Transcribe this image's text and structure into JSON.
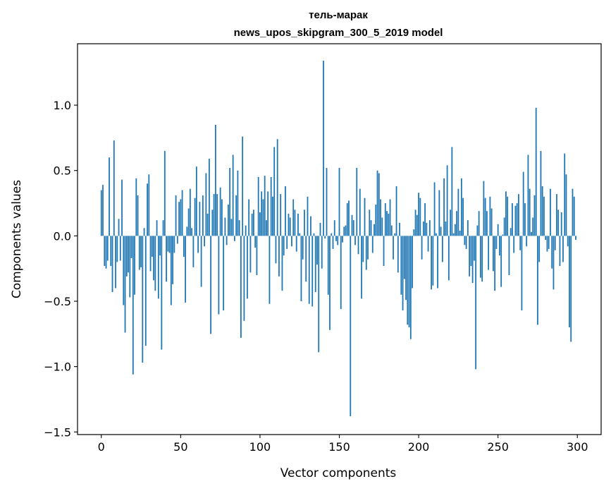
{
  "chart_data": {
    "type": "bar",
    "title_line1": "тель-марак",
    "title_line2": "news_upos_skipgram_300_5_2019 model",
    "xlabel": "Vector components",
    "ylabel": "Components values",
    "xlim": [
      -15,
      315
    ],
    "ylim": [
      -1.52,
      1.47
    ],
    "xticks": [
      0,
      50,
      100,
      150,
      200,
      250,
      300
    ],
    "xtick_labels": [
      "0",
      "50",
      "100",
      "150",
      "200",
      "250",
      "300"
    ],
    "yticks": [
      -1.5,
      -1.0,
      -0.5,
      0.0,
      0.5,
      1.0
    ],
    "ytick_labels": [
      "−1.5",
      "−1.0",
      "−0.5",
      "0.0",
      "0.5",
      "1.0"
    ],
    "bar_color": "#1f77b4",
    "grid": false,
    "x": "0..299 (component index)",
    "values": [
      0.35,
      0.39,
      -0.23,
      -0.25,
      -0.19,
      0.6,
      -0.23,
      -0.43,
      0.73,
      -0.4,
      -0.2,
      0.13,
      -0.19,
      0.43,
      -0.53,
      -0.74,
      -0.31,
      -0.28,
      -0.47,
      -0.17,
      -1.06,
      -0.45,
      0.44,
      0.31,
      -0.26,
      -0.24,
      -0.97,
      0.06,
      -0.84,
      0.4,
      0.47,
      -0.27,
      -0.16,
      -0.34,
      -0.42,
      0.12,
      -0.48,
      -0.15,
      -0.87,
      0.12,
      0.65,
      -0.35,
      -0.12,
      -0.13,
      -0.53,
      -0.37,
      -0.13,
      0.31,
      -0.06,
      0.26,
      0.28,
      0.35,
      -0.16,
      -0.51,
      0.07,
      0.21,
      0.36,
      0.06,
      -0.24,
      0.29,
      0.53,
      -0.13,
      0.26,
      -0.39,
      0.31,
      -0.08,
      0.48,
      0.17,
      0.59,
      -0.75,
      0.2,
      0.32,
      0.85,
      0.32,
      -0.6,
      0.37,
      0.28,
      -0.57,
      0.14,
      -0.07,
      0.24,
      0.52,
      0.13,
      0.62,
      -0.04,
      0.31,
      0.5,
      0.12,
      -0.78,
      0.76,
      -0.65,
      0.08,
      -0.48,
      0.28,
      -0.28,
      0.17,
      0.2,
      -0.09,
      -0.3,
      0.45,
      0.18,
      0.34,
      0.28,
      0.46,
      0.12,
      0.34,
      -0.52,
      0.45,
      0.3,
      0.68,
      -0.21,
      0.74,
      -0.31,
      0.32,
      -0.42,
      -0.15,
      0.38,
      -0.1,
      0.17,
      0.14,
      -0.08,
      0.28,
      0.2,
      -0.12,
      0.17,
      0.02,
      -0.5,
      -0.18,
      0.2,
      -0.35,
      0.3,
      -0.52,
      0.15,
      -0.54,
      0.02,
      -0.43,
      -0.22,
      -0.89,
      0.1,
      -0.25,
      1.34,
      -0.02,
      0.52,
      -0.45,
      -0.72,
      0.02,
      -0.1,
      0.12,
      -0.04,
      -0.07,
      0.52,
      -0.56,
      -0.05,
      0.07,
      0.08,
      0.25,
      0.27,
      -1.38,
      0.16,
      0.12,
      -0.07,
      0.52,
      -0.14,
      0.36,
      -0.48,
      -0.2,
      0.29,
      -0.26,
      -0.18,
      0.2,
      0.12,
      -0.13,
      0.09,
      0.24,
      0.5,
      0.48,
      0.28,
      0.14,
      -0.23,
      0.25,
      0.19,
      0.17,
      0.28,
      0.08,
      -0.18,
      0.02,
      0.38,
      -0.28,
      0.1,
      -0.45,
      -0.57,
      -0.33,
      -0.49,
      -0.68,
      -0.7,
      -0.79,
      -0.4,
      0.05,
      0.2,
      0.16,
      0.33,
      0.29,
      -0.18,
      0.11,
      0.25,
      0.1,
      -0.12,
      0.12,
      -0.41,
      -0.38,
      0.41,
      0.02,
      -0.4,
      0.35,
      0.07,
      -0.2,
      0.44,
      0.11,
      0.54,
      -0.34,
      0.2,
      0.68,
      0.02,
      0.09,
      0.19,
      0.36,
      0.04,
      0.44,
      0.29,
      -0.07,
      -0.1,
      0.12,
      -0.31,
      -0.23,
      -0.36,
      -0.19,
      -1.02,
      0.08,
      0.19,
      -0.32,
      -0.35,
      0.42,
      0.29,
      0.19,
      -0.26,
      0.3,
      0.21,
      -0.27,
      -0.42,
      -0.1,
      0.09,
      -0.15,
      -0.39,
      0.01,
      0.14,
      0.34,
      0.3,
      -0.3,
      0.06,
      0.25,
      -0.13,
      0.23,
      0.25,
      0.32,
      -0.11,
      -0.57,
      0.49,
      0.25,
      -0.08,
      0.62,
      0.36,
      0.03,
      0.14,
      0.31,
      0.98,
      -0.68,
      -0.2,
      0.65,
      0.38,
      0.3,
      -0.03,
      -0.12,
      -0.1,
      0.36,
      -0.25,
      -0.41,
      -0.11,
      0.32,
      0.2,
      -0.23,
      0.18,
      -0.2,
      0.63,
      0.47,
      -0.08,
      -0.7,
      -0.81,
      0.36,
      0.3,
      -0.03
    ]
  }
}
